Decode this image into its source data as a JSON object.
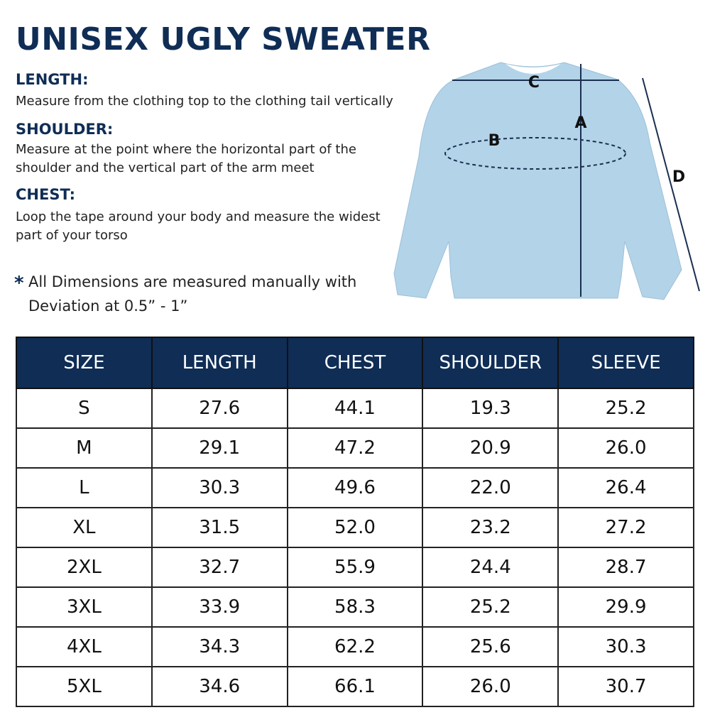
{
  "header": {
    "title": "UNISEX UGLY SWEATER"
  },
  "sections": [
    {
      "heading": "LENGTH:",
      "lines": [
        "Measure from the clothing top to the clothing tail vertically"
      ]
    },
    {
      "heading": "SHOULDER:",
      "lines": [
        "Measure at the point where the horizontal part of the",
        "shoulder and the vertical part of the arm meet"
      ]
    },
    {
      "heading": "CHEST:",
      "lines": [
        "Loop the tape around your body and measure the widest",
        "part of your torso"
      ]
    }
  ],
  "note": {
    "marker": "*",
    "lines": [
      "All Dimensions are measured manually with",
      "Deviation at 0.5” - 1”"
    ]
  },
  "diagram": {
    "labels": [
      "A",
      "B",
      "C",
      "D"
    ]
  },
  "table": {
    "columns": [
      "SIZE",
      "LENGTH",
      "CHEST",
      "SHOULDER",
      "SLEEVE"
    ],
    "rows": [
      [
        "S",
        "27.6",
        "44.1",
        "19.3",
        "25.2"
      ],
      [
        "M",
        "29.1",
        "47.2",
        "20.9",
        "26.0"
      ],
      [
        "L",
        "30.3",
        "49.6",
        "22.0",
        "26.4"
      ],
      [
        "XL",
        "31.5",
        "52.0",
        "23.2",
        "27.2"
      ],
      [
        "2XL",
        "32.7",
        "55.9",
        "24.4",
        "28.7"
      ],
      [
        "3XL",
        "33.9",
        "58.3",
        "25.2",
        "29.9"
      ],
      [
        "4XL",
        "34.3",
        "62.2",
        "25.6",
        "30.3"
      ],
      [
        "5XL",
        "34.6",
        "66.1",
        "26.0",
        "30.7"
      ]
    ]
  }
}
